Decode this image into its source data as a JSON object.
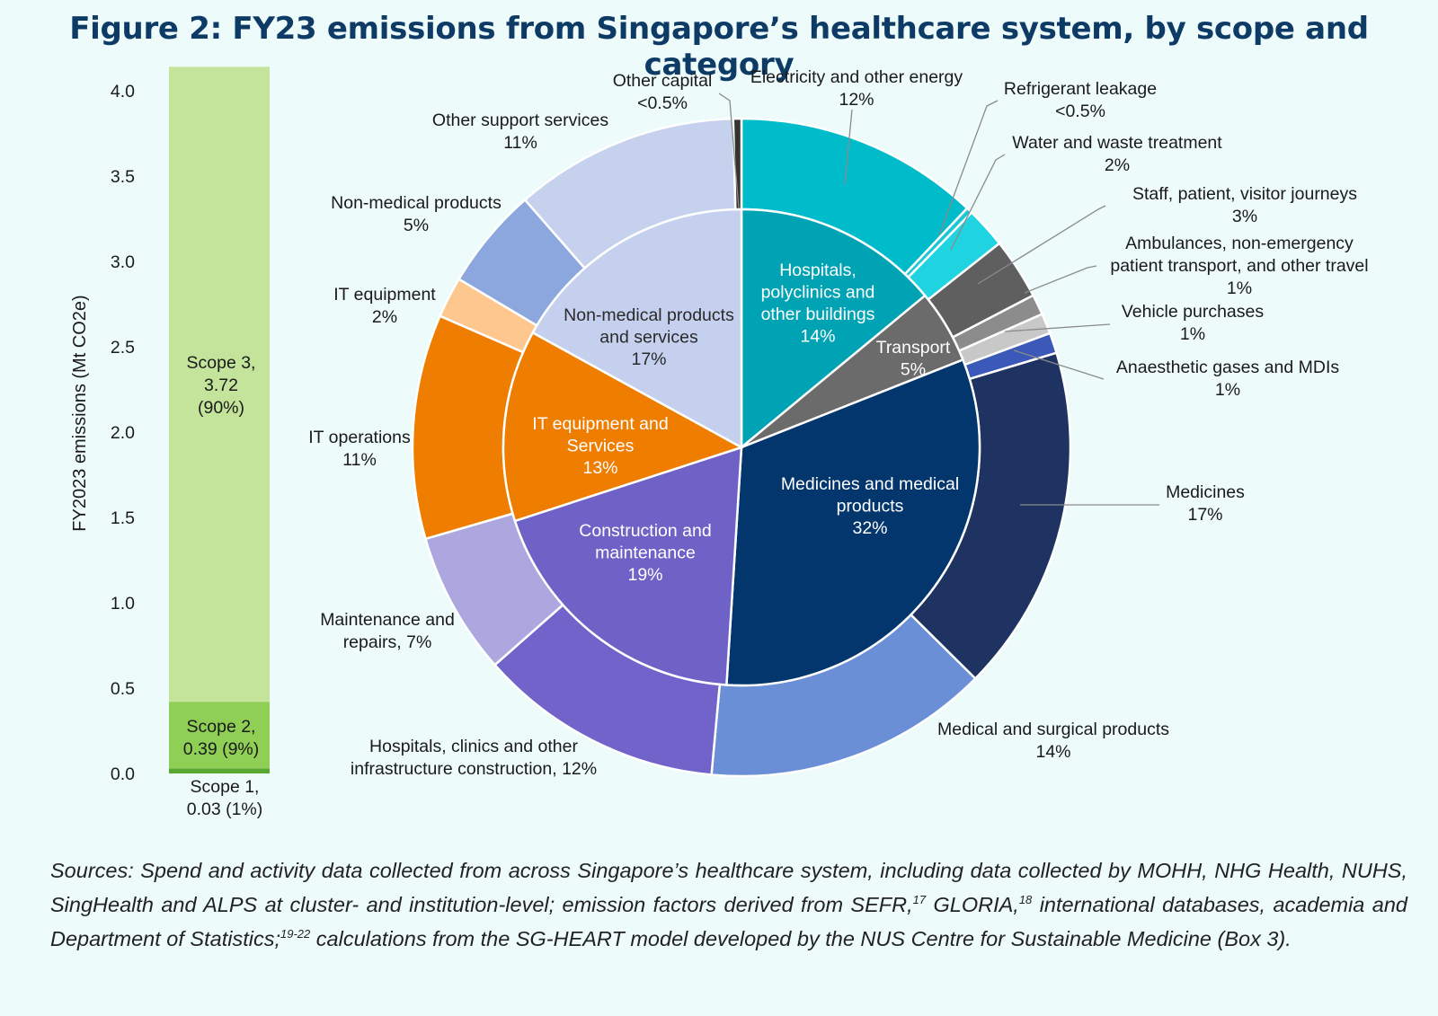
{
  "title": "Figure 2: FY23 emissions from Singapore’s healthcare system, by scope and category",
  "sources": {
    "p1": "Sources: Spend and activity data collected from across Singapore’s healthcare system, including data collected by MOHH, NHG Health, NUHS, SingHealth and ALPS at cluster- and institution-level; emission factors derived from SEFR,",
    "ref1": "17",
    "p2": " GLORIA,",
    "ref2": "18",
    "p3": " international databases, academia and Department of Statistics;",
    "ref3": "19-22",
    "p4": " calculations from the SG-HEART model developed by the NUS Centre for Sustainable Medicine (Box 3)."
  },
  "chart_data": [
    {
      "type": "bar",
      "stacked": true,
      "ylabel": "FY2023 emissions (Mt CO2e)",
      "ylim": [
        0,
        4.15
      ],
      "yticks": [
        "0.0",
        "0.5",
        "1.0",
        "1.5",
        "2.0",
        "2.5",
        "3.0",
        "3.5",
        "4.0"
      ],
      "series": [
        {
          "name": "Scope 1",
          "value": 0.03,
          "label": [
            "Scope 1,",
            "0.03 (1%)"
          ],
          "color": "#5aa832"
        },
        {
          "name": "Scope 2",
          "value": 0.39,
          "label": [
            "Scope 2,",
            "0.39 (9%)"
          ],
          "color": "#8fcf55"
        },
        {
          "name": "Scope 3",
          "value": 3.72,
          "label": [
            "Scope 3,",
            "3.72",
            "(90%)"
          ],
          "color": "#c3e49a"
        }
      ]
    },
    {
      "type": "pie",
      "ring": "inner",
      "slices": [
        {
          "name": "Hospitals, polyclinics and other buildings",
          "value": 14,
          "label": [
            "Hospitals,",
            "polyclinics and",
            "other buildings",
            "14%"
          ],
          "color": "#00a3b4"
        },
        {
          "name": "Transport",
          "value": 5,
          "label": [
            "Transport",
            "5%"
          ],
          "color": "#6b6b6b"
        },
        {
          "name": "Medicines and medical products",
          "value": 32,
          "label": [
            "Medicines and medical",
            "products",
            "32%"
          ],
          "color": "#03366c"
        },
        {
          "name": "Construction and maintenance",
          "value": 19,
          "label": [
            "Construction and",
            "maintenance",
            "19%"
          ],
          "color": "#6e62c6"
        },
        {
          "name": "IT equipment and Services",
          "value": 13,
          "label": [
            "IT equipment and",
            "Services",
            "13%"
          ],
          "color": "#ef7d00"
        },
        {
          "name": "Non-medical products and services",
          "value": 17,
          "label": [
            "Non-medical products",
            "and services",
            "17%"
          ],
          "color": "#c5d0ee"
        }
      ]
    },
    {
      "type": "pie",
      "ring": "outer",
      "slices": [
        {
          "name": "Electricity and other energy",
          "value": 12,
          "label": [
            "Electricity and other energy",
            "12%"
          ],
          "color": "#00bccb"
        },
        {
          "name": "Refrigerant leakage",
          "value": 0.3,
          "label": [
            "Refrigerant leakage",
            "<0.5%"
          ],
          "color": "#1cc8d5"
        },
        {
          "name": "Water and waste treatment",
          "value": 2,
          "label": [
            "Water and waste treatment",
            "2%"
          ],
          "color": "#1fd3e0"
        },
        {
          "name": "Staff, patient, visitor journeys",
          "value": 3,
          "label": [
            "Staff, patient, visitor journeys",
            "3%"
          ],
          "color": "#5f5f5f"
        },
        {
          "name": "Ambulances, non-emergency patient transport, and other travel",
          "value": 1,
          "label": [
            "Ambulances, non-emergency",
            "patient transport, and other travel",
            "1%"
          ],
          "color": "#8c8c8c"
        },
        {
          "name": "Vehicle purchases",
          "value": 1,
          "label": [
            "Vehicle purchases",
            "1%"
          ],
          "color": "#c8c8c8"
        },
        {
          "name": "Anaesthetic gases and MDIs",
          "value": 1,
          "label": [
            "Anaesthetic gases and MDIs",
            "1%"
          ],
          "color": "#3a59b8"
        },
        {
          "name": "Medicines",
          "value": 17,
          "label": [
            "Medicines",
            "17%"
          ],
          "color": "#1f3362"
        },
        {
          "name": "Medical and surgical products",
          "value": 14,
          "label": [
            "Medical and surgical products",
            "14%"
          ],
          "color": "#6a8fd6"
        },
        {
          "name": "Hospitals, clinics and other infrastructure construction",
          "value": 12,
          "label": [
            "Hospitals, clinics and other",
            "infrastructure construction, 12%"
          ],
          "color": "#7163c9"
        },
        {
          "name": "Maintenance and repairs",
          "value": 7,
          "label": [
            "Maintenance and",
            "repairs, 7%"
          ],
          "color": "#ada7e0"
        },
        {
          "name": "IT operations",
          "value": 11,
          "label": [
            "IT operations",
            "11%"
          ],
          "color": "#ef7d00"
        },
        {
          "name": "IT equipment",
          "value": 2,
          "label": [
            "IT equipment",
            "2%"
          ],
          "color": "#fdc78e"
        },
        {
          "name": "Non-medical products",
          "value": 5,
          "label": [
            "Non-medical products",
            "5%"
          ],
          "color": "#8ca6de"
        },
        {
          "name": "Other support services",
          "value": 11,
          "label": [
            "Other support services",
            "11%"
          ],
          "color": "#c6d1ee"
        },
        {
          "name": "Other capital",
          "value": 0.4,
          "label": [
            "Other capital",
            "<0.5%"
          ],
          "color": "#333333"
        }
      ]
    }
  ]
}
